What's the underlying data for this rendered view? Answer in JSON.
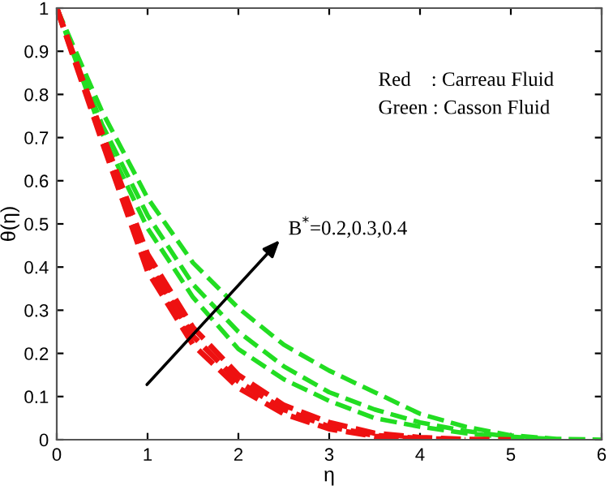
{
  "chart_data": {
    "type": "line",
    "xlabel": "η",
    "ylabel": "θ(η)",
    "x": [
      0,
      0.5,
      1,
      1.5,
      2,
      2.5,
      3,
      3.5,
      4,
      4.5,
      5,
      5.5,
      6
    ],
    "series": [
      {
        "color": "#22dd22",
        "values": [
          1,
          0.76,
          0.56,
          0.41,
          0.305,
          0.22,
          0.16,
          0.11,
          0.06,
          0.03,
          0.01,
          0.002,
          0
        ]
      },
      {
        "color": "#22dd22",
        "x": [
          0,
          0.5,
          1,
          1.5,
          2,
          2.5,
          3,
          3.5,
          4,
          4.5,
          5,
          5.5
        ],
        "values": [
          1,
          0.73,
          0.52,
          0.36,
          0.25,
          0.17,
          0.11,
          0.07,
          0.04,
          0.02,
          0.007,
          0.001
        ]
      },
      {
        "color": "#22dd22",
        "x": [
          0,
          0.5,
          1,
          1.5,
          2,
          2.5,
          3,
          3.5,
          4,
          4.5,
          5
        ],
        "values": [
          1,
          0.71,
          0.49,
          0.33,
          0.21,
          0.14,
          0.09,
          0.05,
          0.03,
          0.015,
          0.005
        ]
      },
      {
        "color": "#ee1111",
        "x": [
          0,
          0.5,
          1,
          1.5,
          2,
          2.5,
          3,
          3.5,
          4,
          4.5,
          5
        ],
        "values": [
          1,
          0.71,
          0.43,
          0.26,
          0.15,
          0.08,
          0.04,
          0.015,
          0.005,
          0.001,
          0
        ]
      },
      {
        "color": "#ee1111",
        "x": [
          0,
          0.5,
          1,
          1.5,
          2,
          2.5,
          3,
          3.5,
          4,
          4.5
        ],
        "values": [
          1,
          0.7,
          0.41,
          0.24,
          0.135,
          0.07,
          0.03,
          0.01,
          0.003,
          0
        ]
      },
      {
        "color": "#ee1111",
        "x": [
          0,
          0.5,
          1,
          1.5,
          2,
          2.5,
          3,
          3.5,
          4
        ],
        "values": [
          1,
          0.69,
          0.39,
          0.22,
          0.12,
          0.06,
          0.025,
          0.008,
          0.002
        ]
      }
    ],
    "line_style": "dashed",
    "marker": "none",
    "grid": false,
    "legend": false,
    "xlim": [
      0,
      6
    ],
    "xticks": [
      0,
      1,
      2,
      3,
      4,
      5,
      6
    ],
    "ylim": [
      0,
      1
    ],
    "yticks": [
      0,
      0.1,
      0.2,
      0.3,
      0.4,
      0.5,
      0.6,
      0.7,
      0.8,
      0.9,
      1
    ],
    "annotations": [
      "Red    : Carreau Fluid",
      "Green : Casson Fluid",
      "B$^{*}$=0.2,0.3,0.4"
    ]
  }
}
